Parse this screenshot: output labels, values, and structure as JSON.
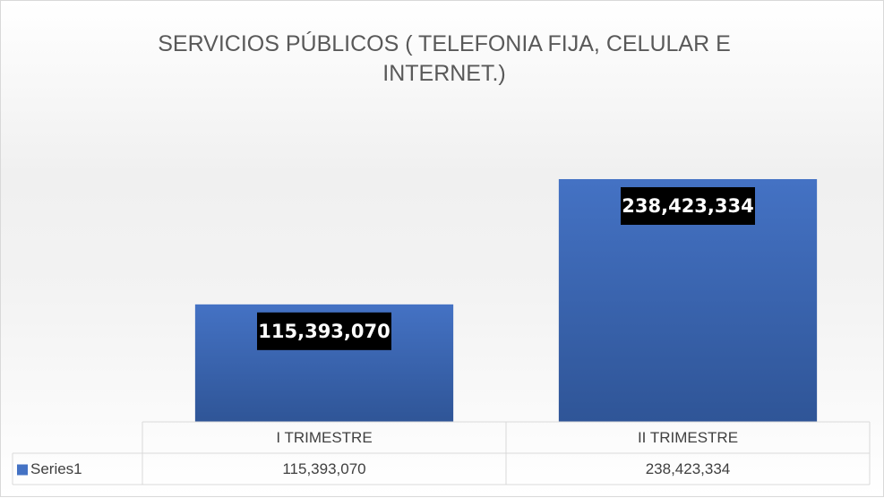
{
  "chart_data": {
    "type": "bar",
    "title": "SERVICIOS PÚBLICOS ( TELEFONIA FIJA, CELULAR E INTERNET.)",
    "categories": [
      "I TRIMESTRE",
      "II TRIMESTRE"
    ],
    "series": [
      {
        "name": "Series1",
        "color": "#4472c4",
        "values": [
          115393070,
          238423334
        ],
        "value_labels": [
          "115,393,070",
          "238,423,334"
        ]
      }
    ],
    "ylim": [
      0,
      300000000
    ]
  }
}
